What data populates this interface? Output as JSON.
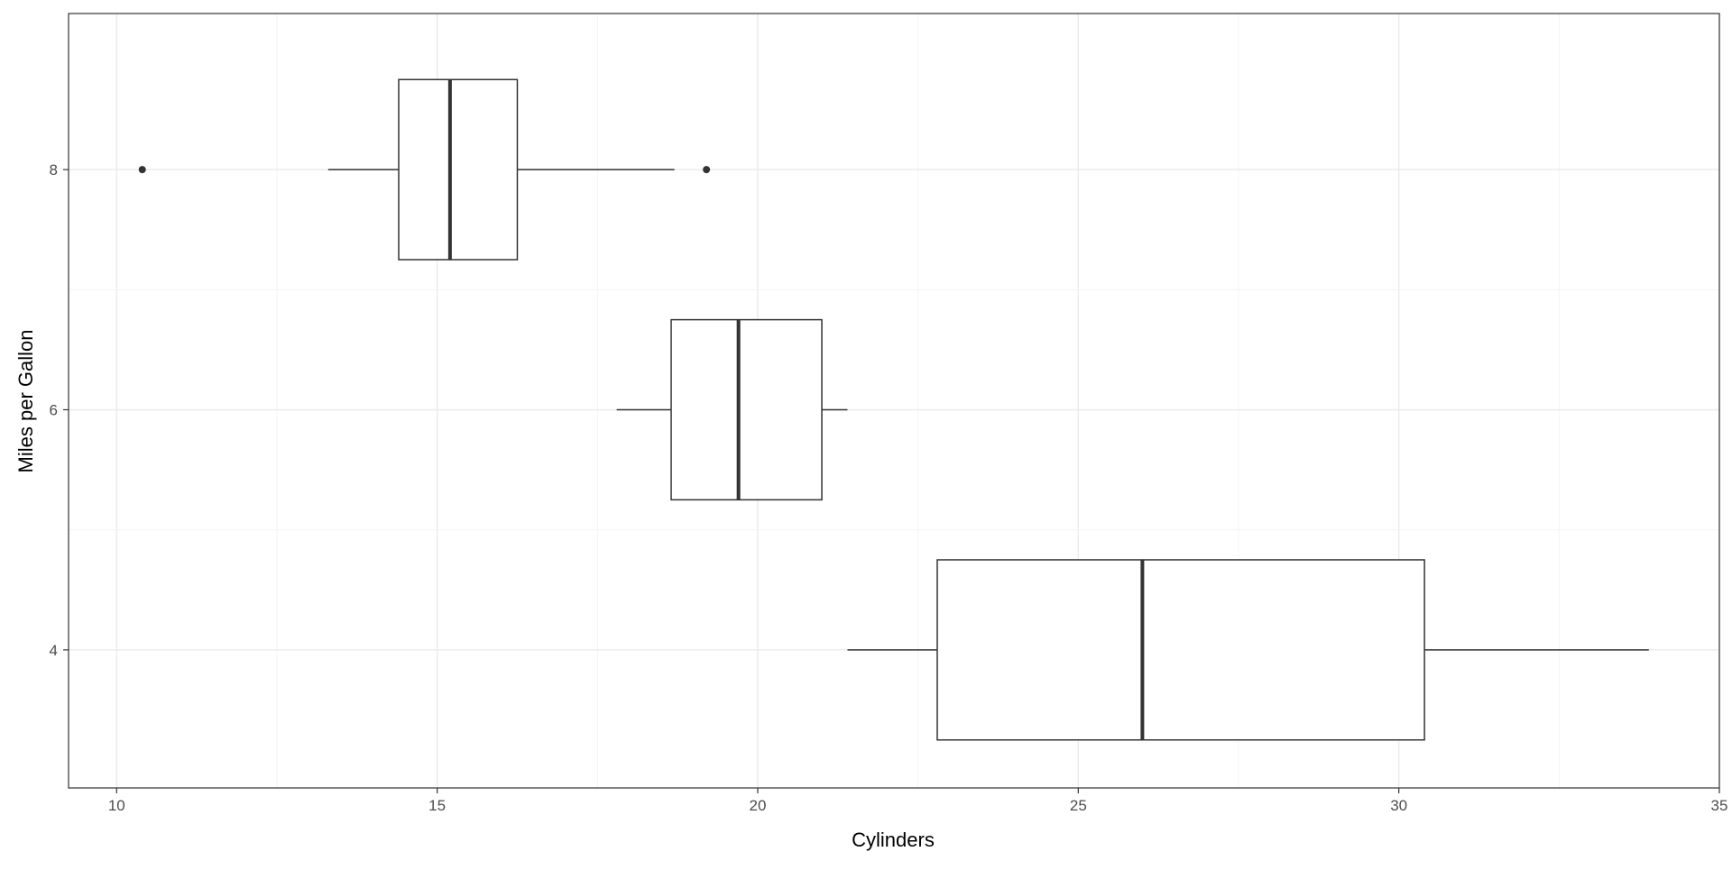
{
  "chart_data": {
    "type": "boxplot",
    "orientation": "horizontal",
    "title": "",
    "xlabel": "Cylinders",
    "ylabel": "Miles per Gallon",
    "xlim": [
      9.25,
      35.0
    ],
    "ylim": [
      2.85,
      9.3
    ],
    "x_ticks": [
      10,
      15,
      20,
      25,
      30,
      35
    ],
    "y_ticks": [
      4,
      6,
      8
    ],
    "grid": true,
    "legend": "none",
    "colors": {
      "box_stroke": "#333333",
      "box_fill": "#ffffff",
      "grid": "#ebebeb",
      "text": "#4d4d4d"
    },
    "boxes": [
      {
        "group": 8,
        "whisker_low": 13.3,
        "q1": 14.4,
        "median": 15.2,
        "q3": 16.25,
        "whisker_high": 18.7,
        "outliers": [
          10.4,
          19.2
        ]
      },
      {
        "group": 6,
        "whisker_low": 17.8,
        "q1": 18.65,
        "median": 19.7,
        "q3": 21.0,
        "whisker_high": 21.4,
        "outliers": []
      },
      {
        "group": 4,
        "whisker_low": 21.4,
        "q1": 22.8,
        "median": 26.0,
        "q3": 30.4,
        "whisker_high": 33.9,
        "outliers": []
      }
    ]
  }
}
